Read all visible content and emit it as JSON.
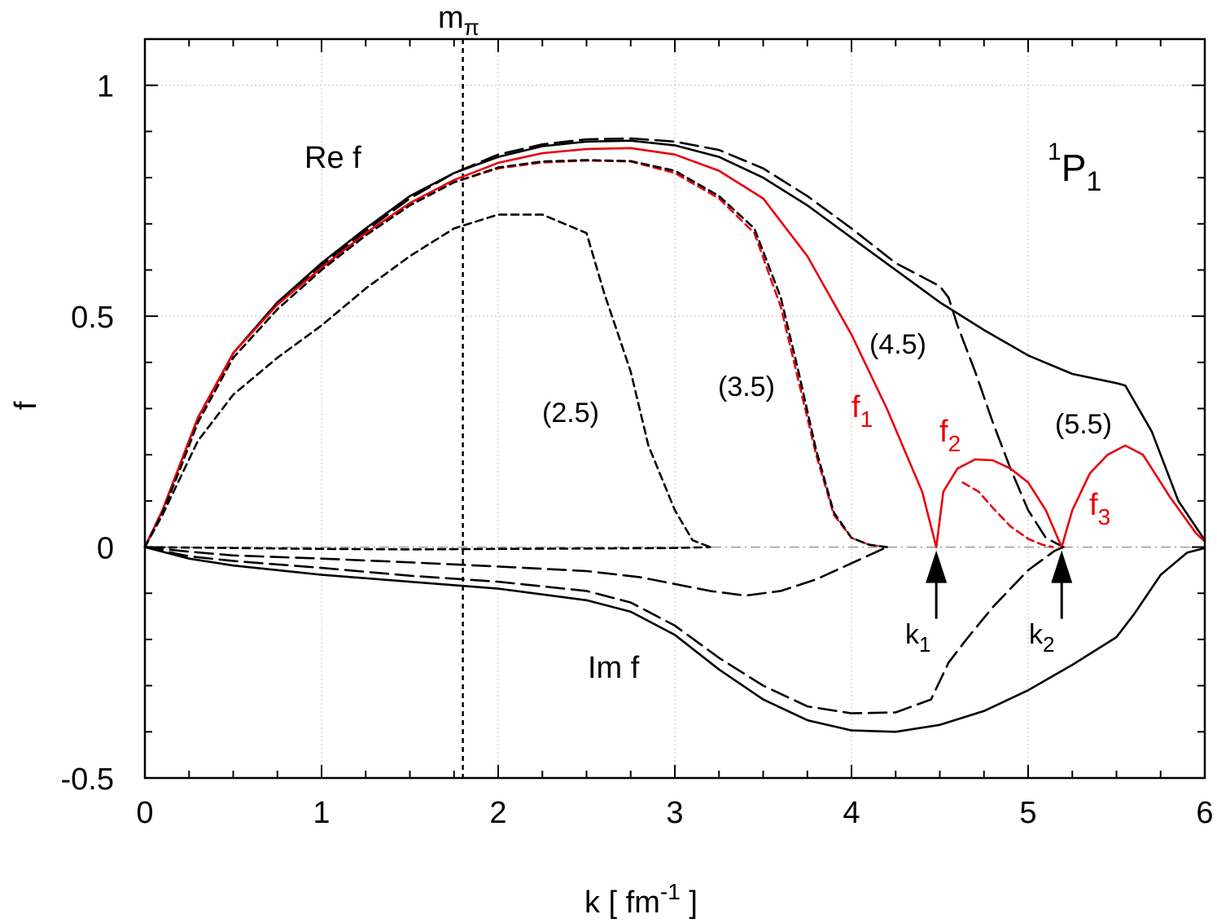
{
  "chart_data": {
    "type": "line",
    "title": "",
    "channel": {
      "sup": "1",
      "main": "P",
      "sub": "1"
    },
    "xlabel": {
      "main": "k  [ fm",
      "sup": "-1",
      "tail": " ]"
    },
    "ylabel": "f",
    "xlim": [
      0,
      6
    ],
    "ylim": [
      -0.5,
      1.1
    ],
    "xticks": [
      "0",
      "1",
      "2",
      "3",
      "4",
      "5",
      "6"
    ],
    "yticks": [
      "-0.5",
      "0",
      "0.5",
      "1"
    ],
    "grid": true,
    "mpi": {
      "x": 1.8,
      "label_main": "m",
      "label_sub": "π"
    },
    "labels": {
      "re": "Re f",
      "im": "Im f",
      "c25": "(2.5)",
      "c35": "(3.5)",
      "c45": "(4.5)",
      "c55": "(5.5)",
      "f1_main": "f",
      "f1_sub": "1",
      "f2_main": "f",
      "f2_sub": "2",
      "f3_main": "f",
      "f3_sub": "3",
      "k1_main": "k",
      "k1_sub": "1",
      "k2_main": "k",
      "k2_sub": "2"
    },
    "arrows": {
      "k1": 4.48,
      "k2": 5.19
    },
    "colors": {
      "black": "#000000",
      "red": "#e8000b",
      "grid": "#c0c0c0"
    },
    "series": [
      {
        "style": "solid",
        "color": "black",
        "x": [
          0,
          0.1,
          0.2,
          0.3,
          0.5,
          0.75,
          1.0,
          1.25,
          1.5,
          1.75,
          2.0,
          2.25,
          2.5,
          2.75,
          3.0,
          3.25,
          3.5,
          3.75,
          4.0,
          4.25,
          4.5,
          4.75,
          5.0,
          5.25,
          5.5,
          5.55,
          5.7,
          5.85,
          6.0
        ],
        "y": [
          0,
          0.08,
          0.18,
          0.28,
          0.42,
          0.53,
          0.615,
          0.69,
          0.76,
          0.81,
          0.845,
          0.868,
          0.878,
          0.88,
          0.87,
          0.845,
          0.8,
          0.74,
          0.67,
          0.6,
          0.53,
          0.47,
          0.415,
          0.375,
          0.355,
          0.35,
          0.25,
          0.1,
          0.015
        ]
      },
      {
        "style": "longdash",
        "color": "black",
        "x": [
          0,
          0.1,
          0.2,
          0.3,
          0.5,
          0.75,
          1.0,
          1.25,
          1.5,
          1.75,
          2.0,
          2.25,
          2.5,
          2.75,
          3.0,
          3.25,
          3.5,
          3.75,
          4.0,
          4.25,
          4.5,
          4.55,
          4.6,
          4.7,
          4.8,
          4.9,
          5.0,
          5.1,
          5.2
        ],
        "y": [
          0,
          0.08,
          0.18,
          0.28,
          0.42,
          0.53,
          0.61,
          0.685,
          0.755,
          0.81,
          0.85,
          0.872,
          0.883,
          0.885,
          0.878,
          0.86,
          0.82,
          0.76,
          0.69,
          0.615,
          0.565,
          0.54,
          0.48,
          0.38,
          0.27,
          0.17,
          0.08,
          0.02,
          0.0
        ]
      },
      {
        "style": "solid",
        "color": "red",
        "x": [
          0,
          0.1,
          0.2,
          0.3,
          0.5,
          0.75,
          1.0,
          1.25,
          1.5,
          1.75,
          2.0,
          2.25,
          2.5,
          2.75,
          3.0,
          3.25,
          3.5,
          3.75,
          4.0,
          4.2,
          4.4,
          4.48
        ],
        "y": [
          0,
          0.08,
          0.18,
          0.28,
          0.42,
          0.525,
          0.605,
          0.68,
          0.745,
          0.795,
          0.832,
          0.853,
          0.862,
          0.864,
          0.85,
          0.815,
          0.755,
          0.63,
          0.46,
          0.3,
          0.12,
          0.0
        ]
      },
      {
        "style": "solid",
        "color": "red",
        "x": [
          4.48,
          4.52,
          4.6,
          4.7,
          4.8,
          4.9,
          5.0,
          5.1,
          5.19
        ],
        "y": [
          0,
          0.12,
          0.17,
          0.19,
          0.188,
          0.17,
          0.14,
          0.08,
          0.0
        ]
      },
      {
        "style": "solid",
        "color": "red",
        "x": [
          5.19,
          5.25,
          5.35,
          5.45,
          5.55,
          5.65,
          5.8,
          5.95,
          6.0
        ],
        "y": [
          0,
          0.08,
          0.16,
          0.2,
          0.22,
          0.2,
          0.11,
          0.03,
          0.012
        ]
      },
      {
        "style": "dash",
        "color": "red",
        "x": [
          0,
          0.1,
          0.2,
          0.3,
          0.5,
          0.75,
          1.0,
          1.25,
          1.5,
          1.75,
          2.0,
          2.25,
          2.5,
          2.75,
          3.0,
          3.25,
          3.45,
          3.6,
          3.7,
          3.8,
          3.9,
          4.0,
          4.1,
          4.2
        ],
        "y": [
          0,
          0.075,
          0.17,
          0.27,
          0.41,
          0.515,
          0.6,
          0.675,
          0.74,
          0.79,
          0.82,
          0.833,
          0.837,
          0.835,
          0.81,
          0.755,
          0.68,
          0.52,
          0.36,
          0.2,
          0.07,
          0.02,
          0.005,
          0.0
        ]
      },
      {
        "style": "dash",
        "color": "black",
        "x": [
          0,
          0.1,
          0.2,
          0.3,
          0.5,
          0.75,
          1.0,
          1.25,
          1.5,
          1.75,
          2.0,
          2.25,
          2.5,
          2.75,
          3.0,
          3.25,
          3.45,
          3.6,
          3.7,
          3.8,
          3.9,
          4.0,
          4.1,
          4.2
        ],
        "y": [
          0,
          0.075,
          0.17,
          0.27,
          0.41,
          0.515,
          0.6,
          0.675,
          0.74,
          0.79,
          0.822,
          0.835,
          0.838,
          0.836,
          0.815,
          0.76,
          0.69,
          0.54,
          0.38,
          0.21,
          0.075,
          0.02,
          0.005,
          0.0
        ]
      },
      {
        "style": "dash",
        "color": "red",
        "x": [
          4.63,
          4.72,
          4.8,
          4.9,
          5.0,
          5.08,
          5.14
        ],
        "y": [
          0.14,
          0.12,
          0.085,
          0.045,
          0.018,
          0.005,
          0.0
        ]
      },
      {
        "style": "dash",
        "color": "black",
        "x": [
          0,
          0.1,
          0.2,
          0.3,
          0.5,
          0.75,
          1.0,
          1.25,
          1.5,
          1.75,
          2.0,
          2.25,
          2.5,
          2.6,
          2.75,
          2.85,
          3.0,
          3.1,
          3.2
        ],
        "y": [
          0,
          0.07,
          0.15,
          0.23,
          0.33,
          0.41,
          0.48,
          0.56,
          0.63,
          0.69,
          0.72,
          0.72,
          0.68,
          0.55,
          0.38,
          0.22,
          0.08,
          0.015,
          0.0
        ]
      },
      {
        "style": "dash",
        "color": "black",
        "x": [
          0,
          0.5,
          1.0,
          1.5,
          2.0,
          2.5,
          3.0,
          3.2
        ],
        "y": [
          0,
          -0.002,
          -0.004,
          -0.005,
          -0.004,
          -0.003,
          -0.002,
          0.0
        ]
      },
      {
        "style": "longdash",
        "color": "black",
        "x": [
          0,
          0.25,
          0.5,
          1.0,
          1.5,
          2.0,
          2.5,
          2.8,
          3.0,
          3.2,
          3.4,
          3.6,
          3.8,
          4.0,
          4.2
        ],
        "y": [
          0,
          -0.01,
          -0.018,
          -0.025,
          -0.033,
          -0.042,
          -0.052,
          -0.065,
          -0.08,
          -0.095,
          -0.105,
          -0.095,
          -0.07,
          -0.035,
          0.0
        ]
      },
      {
        "style": "longdash",
        "color": "black",
        "x": [
          0,
          0.25,
          0.5,
          1.0,
          1.5,
          2.0,
          2.5,
          2.75,
          3.0,
          3.25,
          3.5,
          3.75,
          4.0,
          4.25,
          4.45,
          4.55,
          4.65,
          4.8,
          5.0,
          5.15,
          5.2
        ],
        "y": [
          0,
          -0.02,
          -0.03,
          -0.045,
          -0.062,
          -0.075,
          -0.095,
          -0.12,
          -0.17,
          -0.24,
          -0.3,
          -0.345,
          -0.36,
          -0.358,
          -0.33,
          -0.25,
          -0.2,
          -0.13,
          -0.05,
          -0.008,
          0.0
        ]
      },
      {
        "style": "solid",
        "color": "black",
        "x": [
          0,
          0.25,
          0.5,
          1.0,
          1.5,
          2.0,
          2.5,
          2.75,
          3.0,
          3.25,
          3.5,
          3.75,
          4.0,
          4.25,
          4.5,
          4.75,
          5.0,
          5.25,
          5.5,
          5.6,
          5.75,
          5.9,
          6.0
        ],
        "y": [
          0,
          -0.025,
          -0.04,
          -0.06,
          -0.075,
          -0.09,
          -0.115,
          -0.14,
          -0.19,
          -0.265,
          -0.33,
          -0.375,
          -0.397,
          -0.4,
          -0.385,
          -0.355,
          -0.31,
          -0.255,
          -0.195,
          -0.145,
          -0.06,
          -0.012,
          -0.002
        ]
      }
    ]
  }
}
